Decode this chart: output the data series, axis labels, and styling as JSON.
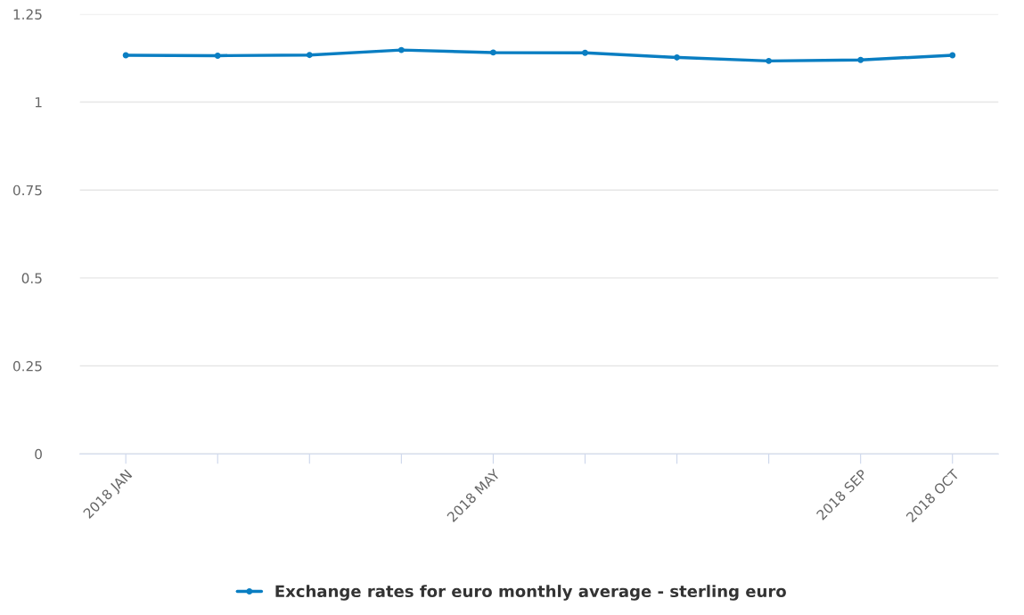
{
  "chart_data": {
    "type": "line",
    "categories": [
      "2018 JAN",
      null,
      null,
      null,
      "2018 MAY",
      null,
      null,
      null,
      "2018 SEP",
      "2018 OCT"
    ],
    "series": [
      {
        "name": "Exchange rates for euro monthly average - sterling euro",
        "color": "#0a7ec2",
        "values": [
          1.133,
          1.132,
          1.134,
          1.148,
          1.141,
          1.14,
          1.127,
          1.117,
          1.12,
          1.133
        ]
      }
    ],
    "ylim": [
      0,
      1.25
    ],
    "yticks": [
      0,
      0.25,
      0.5,
      0.75,
      1,
      1.25
    ],
    "grid": "y",
    "legend": "bottom",
    "marker": "circle",
    "line_style": "solid"
  }
}
